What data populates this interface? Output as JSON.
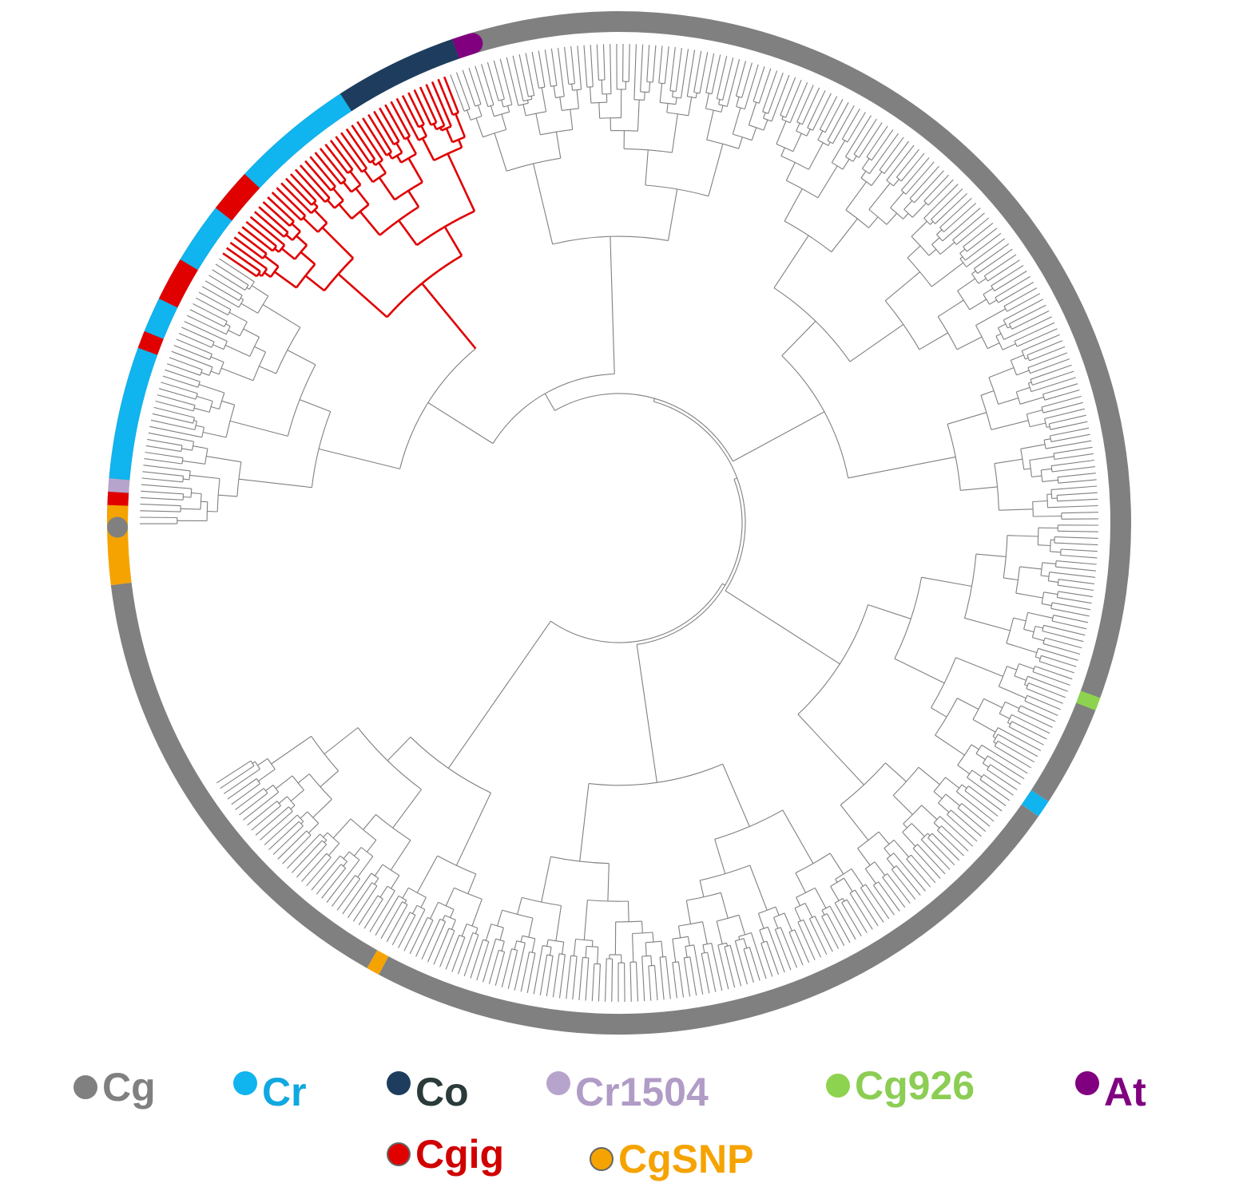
{
  "figure": {
    "colors": {
      "branch_default": "#808080",
      "branch_highlight": "#e00000"
    }
  },
  "legend": {
    "row1": [
      {
        "key": "cg",
        "label": "Cg",
        "dot": "#808080",
        "text": "#808080",
        "icon": "gray-dot-icon"
      },
      {
        "key": "cr",
        "label": "Cr",
        "dot": "#10b4ee",
        "text": "#10a8e0",
        "icon": "cyan-dot-icon"
      },
      {
        "key": "co",
        "label": "Co",
        "dot": "#1e3d5e",
        "text": "#2b3a3a",
        "icon": "navy-dot-icon"
      },
      {
        "key": "cr1504",
        "label": "Cr1504",
        "dot": "#b7a4cc",
        "text": "#b09cc6",
        "icon": "lavender-dot-icon"
      },
      {
        "key": "cg926",
        "label": "Cg926",
        "dot": "#8ed34f",
        "text": "#8ccd54",
        "icon": "green-dot-icon"
      },
      {
        "key": "at",
        "label": "At",
        "dot": "#800080",
        "text": "#800080",
        "icon": "purple-dot-icon"
      }
    ],
    "row2": [
      {
        "key": "cgig",
        "label": "Cgig",
        "dot": "#e00000",
        "text": "#d00000",
        "icon": "red-dot-icon"
      },
      {
        "key": "cgsnp",
        "label": "CgSNP",
        "dot": "#f5a300",
        "text": "#f5a300",
        "icon": "orange-dot-icon"
      }
    ]
  }
}
